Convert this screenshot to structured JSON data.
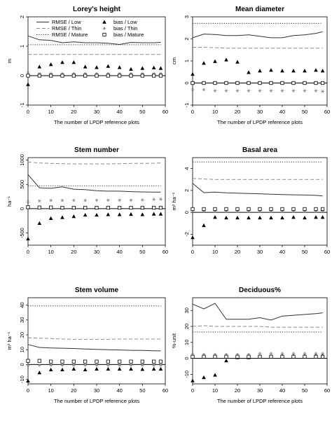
{
  "legend": {
    "entries": [
      {
        "label": "RMSE / Low",
        "kind": "line",
        "dash": "solid"
      },
      {
        "label": "RMSE / Thin",
        "kind": "line",
        "dash": "dashed"
      },
      {
        "label": "RMSE / Mature",
        "kind": "line",
        "dash": "dotted"
      },
      {
        "label": "bias / Low",
        "kind": "point",
        "marker": "triangle"
      },
      {
        "label": "bias / Thin",
        "kind": "point",
        "marker": "asterisk"
      },
      {
        "label": "bias / Mature",
        "kind": "point",
        "marker": "open-square"
      }
    ]
  },
  "chart_data": [
    {
      "type": "line",
      "title": "Lorey's height",
      "xlabel": "The number of LPDP reference plots",
      "ylabel": "m",
      "xlim": [
        0,
        60
      ],
      "ylim": [
        -1,
        2
      ],
      "xticks": [
        0,
        10,
        20,
        30,
        40,
        50,
        60
      ],
      "yticks": [
        -1,
        0,
        1,
        2
      ],
      "zero_line": true,
      "legend_position": "top-center",
      "x": [
        0,
        5,
        10,
        15,
        20,
        25,
        30,
        35,
        40,
        45,
        50,
        55,
        58
      ],
      "series": [
        {
          "name": "RMSE / Low",
          "style": "solid",
          "values": [
            1.35,
            1.22,
            1.2,
            1.12,
            1.15,
            1.12,
            1.12,
            1.1,
            1.06,
            1.13,
            1.12,
            1.12,
            1.13
          ]
        },
        {
          "name": "RMSE / Thin",
          "style": "dashed",
          "values": [
            0.72,
            0.72,
            0.72,
            0.72,
            0.72,
            0.72,
            0.72,
            0.72,
            0.72,
            0.72,
            0.72,
            0.72,
            0.72
          ]
        },
        {
          "name": "RMSE / Mature",
          "style": "dotted",
          "values": [
            1.05,
            1.05,
            1.05,
            1.05,
            1.05,
            1.05,
            1.05,
            1.05,
            1.05,
            1.05,
            1.05,
            1.05,
            1.05
          ]
        },
        {
          "name": "bias / Low",
          "style": "triangle",
          "values": [
            -0.3,
            0.3,
            0.38,
            0.45,
            0.45,
            0.3,
            0.28,
            0.32,
            0.28,
            0.22,
            0.25,
            0.27,
            0.25
          ]
        },
        {
          "name": "bias / Thin",
          "style": "asterisk",
          "values": [
            0.1,
            0.07,
            0.07,
            0.07,
            0.07,
            0.07,
            0.07,
            0.07,
            0.07,
            0.07,
            0.07,
            0.07,
            0.07
          ]
        },
        {
          "name": "bias / Mature",
          "style": "square",
          "values": [
            0.0,
            0.0,
            0.0,
            0.0,
            0.0,
            0.0,
            0.0,
            0.0,
            0.0,
            0.0,
            0.0,
            0.0,
            0.0
          ]
        }
      ]
    },
    {
      "type": "line",
      "title": "Mean diameter",
      "xlabel": "The number of LPDP reference plots",
      "ylabel": "cm",
      "xlim": [
        0,
        60
      ],
      "ylim": [
        -1,
        3
      ],
      "xticks": [
        0,
        10,
        20,
        30,
        40,
        50,
        60
      ],
      "yticks": [
        -1,
        0,
        1,
        2,
        3
      ],
      "zero_line": true,
      "x": [
        0,
        5,
        10,
        15,
        20,
        25,
        30,
        35,
        40,
        45,
        50,
        55,
        58
      ],
      "series": [
        {
          "name": "RMSE / Low",
          "style": "solid",
          "values": [
            2.05,
            2.22,
            2.2,
            2.15,
            2.15,
            2.18,
            2.12,
            2.05,
            2.05,
            2.15,
            2.18,
            2.25,
            2.32
          ]
        },
        {
          "name": "RMSE / Thin",
          "style": "dashed",
          "values": [
            1.62,
            1.62,
            1.6,
            1.58,
            1.58,
            1.58,
            1.58,
            1.58,
            1.58,
            1.58,
            1.58,
            1.58,
            1.58
          ]
        },
        {
          "name": "RMSE / Mature",
          "style": "dotted",
          "values": [
            2.7,
            2.7,
            2.7,
            2.7,
            2.7,
            2.7,
            2.7,
            2.7,
            2.7,
            2.7,
            2.7,
            2.7,
            2.7
          ]
        },
        {
          "name": "bias / Low",
          "style": "triangle",
          "values": [
            0.4,
            0.9,
            0.98,
            1.05,
            0.95,
            0.48,
            0.55,
            0.58,
            0.55,
            0.55,
            0.55,
            0.58,
            0.55
          ]
        },
        {
          "name": "bias / Thin",
          "style": "asterisk",
          "values": [
            -0.3,
            -0.3,
            -0.35,
            -0.35,
            -0.35,
            -0.35,
            -0.35,
            -0.35,
            -0.35,
            -0.35,
            -0.35,
            -0.35,
            -0.38
          ]
        },
        {
          "name": "bias / Mature",
          "style": "square",
          "values": [
            0.0,
            0.0,
            0.0,
            0.0,
            0.0,
            0.0,
            0.0,
            0.0,
            0.0,
            0.0,
            0.0,
            0.0,
            0.0
          ]
        }
      ]
    },
    {
      "type": "line",
      "title": "Stem number",
      "xlabel": "",
      "ylabel": "ha⁻¹",
      "xlim": [
        0,
        60
      ],
      "ylim": [
        -750,
        1050
      ],
      "xticks": [
        0,
        10,
        20,
        30,
        40,
        50,
        60
      ],
      "yticks": [
        -500,
        0,
        500,
        1000
      ],
      "zero_line": true,
      "x": [
        0,
        5,
        10,
        15,
        20,
        25,
        30,
        35,
        40,
        45,
        50,
        55,
        58
      ],
      "series": [
        {
          "name": "RMSE / Low",
          "style": "solid",
          "values": [
            700,
            430,
            420,
            450,
            400,
            390,
            370,
            360,
            360,
            350,
            345,
            340,
            340
          ]
        },
        {
          "name": "RMSE / Thin",
          "style": "dashed",
          "values": [
            960,
            940,
            930,
            925,
            920,
            920,
            920,
            920,
            925,
            930,
            930,
            935,
            940
          ]
        },
        {
          "name": "RMSE / Mature",
          "style": "dotted",
          "values": [
            470,
            470,
            470,
            470,
            470,
            470,
            470,
            470,
            470,
            470,
            470,
            470,
            470
          ]
        },
        {
          "name": "bias / Low",
          "style": "triangle",
          "values": [
            -620,
            -300,
            -200,
            -180,
            -160,
            -130,
            -130,
            -120,
            -120,
            -115,
            -120,
            -110,
            -110
          ]
        },
        {
          "name": "bias / Thin",
          "style": "asterisk",
          "values": [
            140,
            160,
            170,
            170,
            170,
            170,
            175,
            175,
            175,
            175,
            180,
            190,
            195
          ]
        },
        {
          "name": "bias / Mature",
          "style": "square",
          "values": [
            30,
            25,
            25,
            20,
            20,
            20,
            20,
            20,
            20,
            20,
            20,
            20,
            20
          ]
        }
      ]
    },
    {
      "type": "line",
      "title": "Basal area",
      "xlabel": "",
      "ylabel": "m² ha⁻¹",
      "xlim": [
        0,
        60
      ],
      "ylim": [
        -3,
        5
      ],
      "xticks": [
        0,
        10,
        20,
        30,
        40,
        50,
        60
      ],
      "yticks": [
        -2,
        0,
        2,
        4
      ],
      "zero_line": true,
      "x": [
        0,
        5,
        10,
        15,
        20,
        25,
        30,
        35,
        40,
        45,
        50,
        55,
        58
      ],
      "series": [
        {
          "name": "RMSE / Low",
          "style": "solid",
          "values": [
            2.65,
            1.8,
            1.85,
            1.78,
            1.75,
            1.72,
            1.7,
            1.65,
            1.62,
            1.6,
            1.58,
            1.55,
            1.5
          ]
        },
        {
          "name": "RMSE / Thin",
          "style": "dashed",
          "values": [
            3.1,
            3.05,
            3.0,
            3.0,
            3.0,
            3.0,
            3.0,
            3.0,
            3.0,
            3.0,
            3.0,
            3.0,
            3.0
          ]
        },
        {
          "name": "RMSE / Mature",
          "style": "dotted",
          "values": [
            4.6,
            4.6,
            4.6,
            4.6,
            4.6,
            4.6,
            4.6,
            4.6,
            4.6,
            4.6,
            4.6,
            4.6,
            4.6
          ]
        },
        {
          "name": "bias / Low",
          "style": "triangle",
          "values": [
            -2.3,
            -1.2,
            -0.45,
            -0.5,
            -0.5,
            -0.5,
            -0.5,
            -0.5,
            -0.5,
            -0.45,
            -0.5,
            -0.45,
            -0.45
          ]
        },
        {
          "name": "bias / Thin",
          "style": "asterisk",
          "values": [
            0.05,
            0.08,
            0.1,
            0.1,
            0.1,
            0.1,
            0.1,
            0.1,
            0.1,
            0.1,
            0.1,
            0.1,
            0.1
          ]
        },
        {
          "name": "bias / Mature",
          "style": "square",
          "values": [
            0.3,
            0.3,
            0.3,
            0.3,
            0.3,
            0.3,
            0.3,
            0.3,
            0.3,
            0.3,
            0.3,
            0.3,
            0.3
          ]
        }
      ]
    },
    {
      "type": "line",
      "title": "Stem volume",
      "xlabel": "The number of LPDP reference plots",
      "ylabel": "m³ ha⁻¹",
      "xlim": [
        0,
        60
      ],
      "ylim": [
        -13,
        45
      ],
      "xticks": [
        0,
        10,
        20,
        30,
        40,
        50,
        60
      ],
      "yticks": [
        -10,
        0,
        10,
        20,
        30,
        40
      ],
      "zero_line": true,
      "x": [
        0,
        5,
        10,
        15,
        20,
        25,
        30,
        35,
        40,
        45,
        50,
        55,
        58
      ],
      "series": [
        {
          "name": "RMSE / Low",
          "style": "solid",
          "values": [
            13.5,
            11.5,
            11.2,
            11.0,
            10.8,
            10.5,
            10.2,
            10.0,
            9.8,
            9.6,
            9.5,
            9.3,
            9.2
          ]
        },
        {
          "name": "RMSE / Thin",
          "style": "dashed",
          "values": [
            18.0,
            17.8,
            17.5,
            17.2,
            17.0,
            17.0,
            17.0,
            17.0,
            17.2,
            17.2,
            17.2,
            17.2,
            17.2
          ]
        },
        {
          "name": "RMSE / Mature",
          "style": "dotted",
          "values": [
            39.5,
            39.5,
            39.5,
            39.5,
            39.5,
            39.5,
            39.5,
            39.5,
            39.5,
            39.5,
            39.5,
            39.5,
            39.5
          ]
        },
        {
          "name": "bias / Low",
          "style": "triangle",
          "values": [
            -11,
            -5.5,
            -3.5,
            -3.5,
            -3.0,
            -3.5,
            -3.0,
            -3.0,
            -3.0,
            -3.0,
            -3.2,
            -3.0,
            -3.0
          ]
        },
        {
          "name": "bias / Thin",
          "style": "asterisk",
          "values": [
            -0.5,
            -0.5,
            -0.5,
            -0.5,
            -0.5,
            -0.5,
            -0.5,
            -0.5,
            -0.5,
            -0.5,
            -0.5,
            -0.5,
            -0.5
          ]
        },
        {
          "name": "bias / Mature",
          "style": "square",
          "values": [
            2.5,
            2.5,
            2.0,
            2.0,
            2.0,
            2.0,
            2.0,
            2.0,
            2.0,
            2.0,
            2.0,
            2.0,
            2.0
          ]
        }
      ]
    },
    {
      "type": "line",
      "title": "Deciduous%",
      "xlabel": "The number of LPDP reference plots",
      "ylabel": "%-unit",
      "xlim": [
        0,
        60
      ],
      "ylim": [
        -16,
        38
      ],
      "xticks": [
        0,
        10,
        20,
        30,
        40,
        50,
        60
      ],
      "yticks": [
        -10,
        0,
        10,
        20,
        30
      ],
      "zero_line": true,
      "x": [
        0,
        5,
        10,
        15,
        20,
        25,
        30,
        35,
        40,
        45,
        50,
        55,
        58
      ],
      "series": [
        {
          "name": "RMSE / Low",
          "style": "solid",
          "values": [
            34,
            31,
            34.5,
            24.5,
            24.5,
            24.5,
            25.5,
            24,
            26.5,
            27,
            27.5,
            28,
            28.5
          ]
        },
        {
          "name": "RMSE / Thin",
          "style": "dashed",
          "values": [
            20,
            20.5,
            20,
            20,
            20,
            20,
            20,
            19.5,
            19.5,
            19.5,
            19.5,
            19.5,
            19.5
          ]
        },
        {
          "name": "RMSE / Mature",
          "style": "dotted",
          "values": [
            16.5,
            16.5,
            16.5,
            16.5,
            16.5,
            16.5,
            16.5,
            16.5,
            16.5,
            16.5,
            16.5,
            16.5,
            16.5
          ]
        },
        {
          "name": "bias / Low",
          "style": "triangle",
          "values": [
            -14,
            -12,
            -10.5,
            -1.5,
            0.5,
            0.5,
            1,
            1,
            1.5,
            1.5,
            1.5,
            2,
            2
          ]
        },
        {
          "name": "bias / Thin",
          "style": "asterisk",
          "values": [
            2.5,
            2.5,
            2.5,
            2.5,
            2.5,
            2.5,
            3,
            3,
            3,
            3,
            3,
            3,
            3
          ]
        },
        {
          "name": "bias / Mature",
          "style": "square",
          "values": [
            1,
            1,
            1,
            1,
            1,
            1,
            1,
            1,
            1,
            1,
            1,
            1,
            1
          ]
        }
      ]
    }
  ]
}
